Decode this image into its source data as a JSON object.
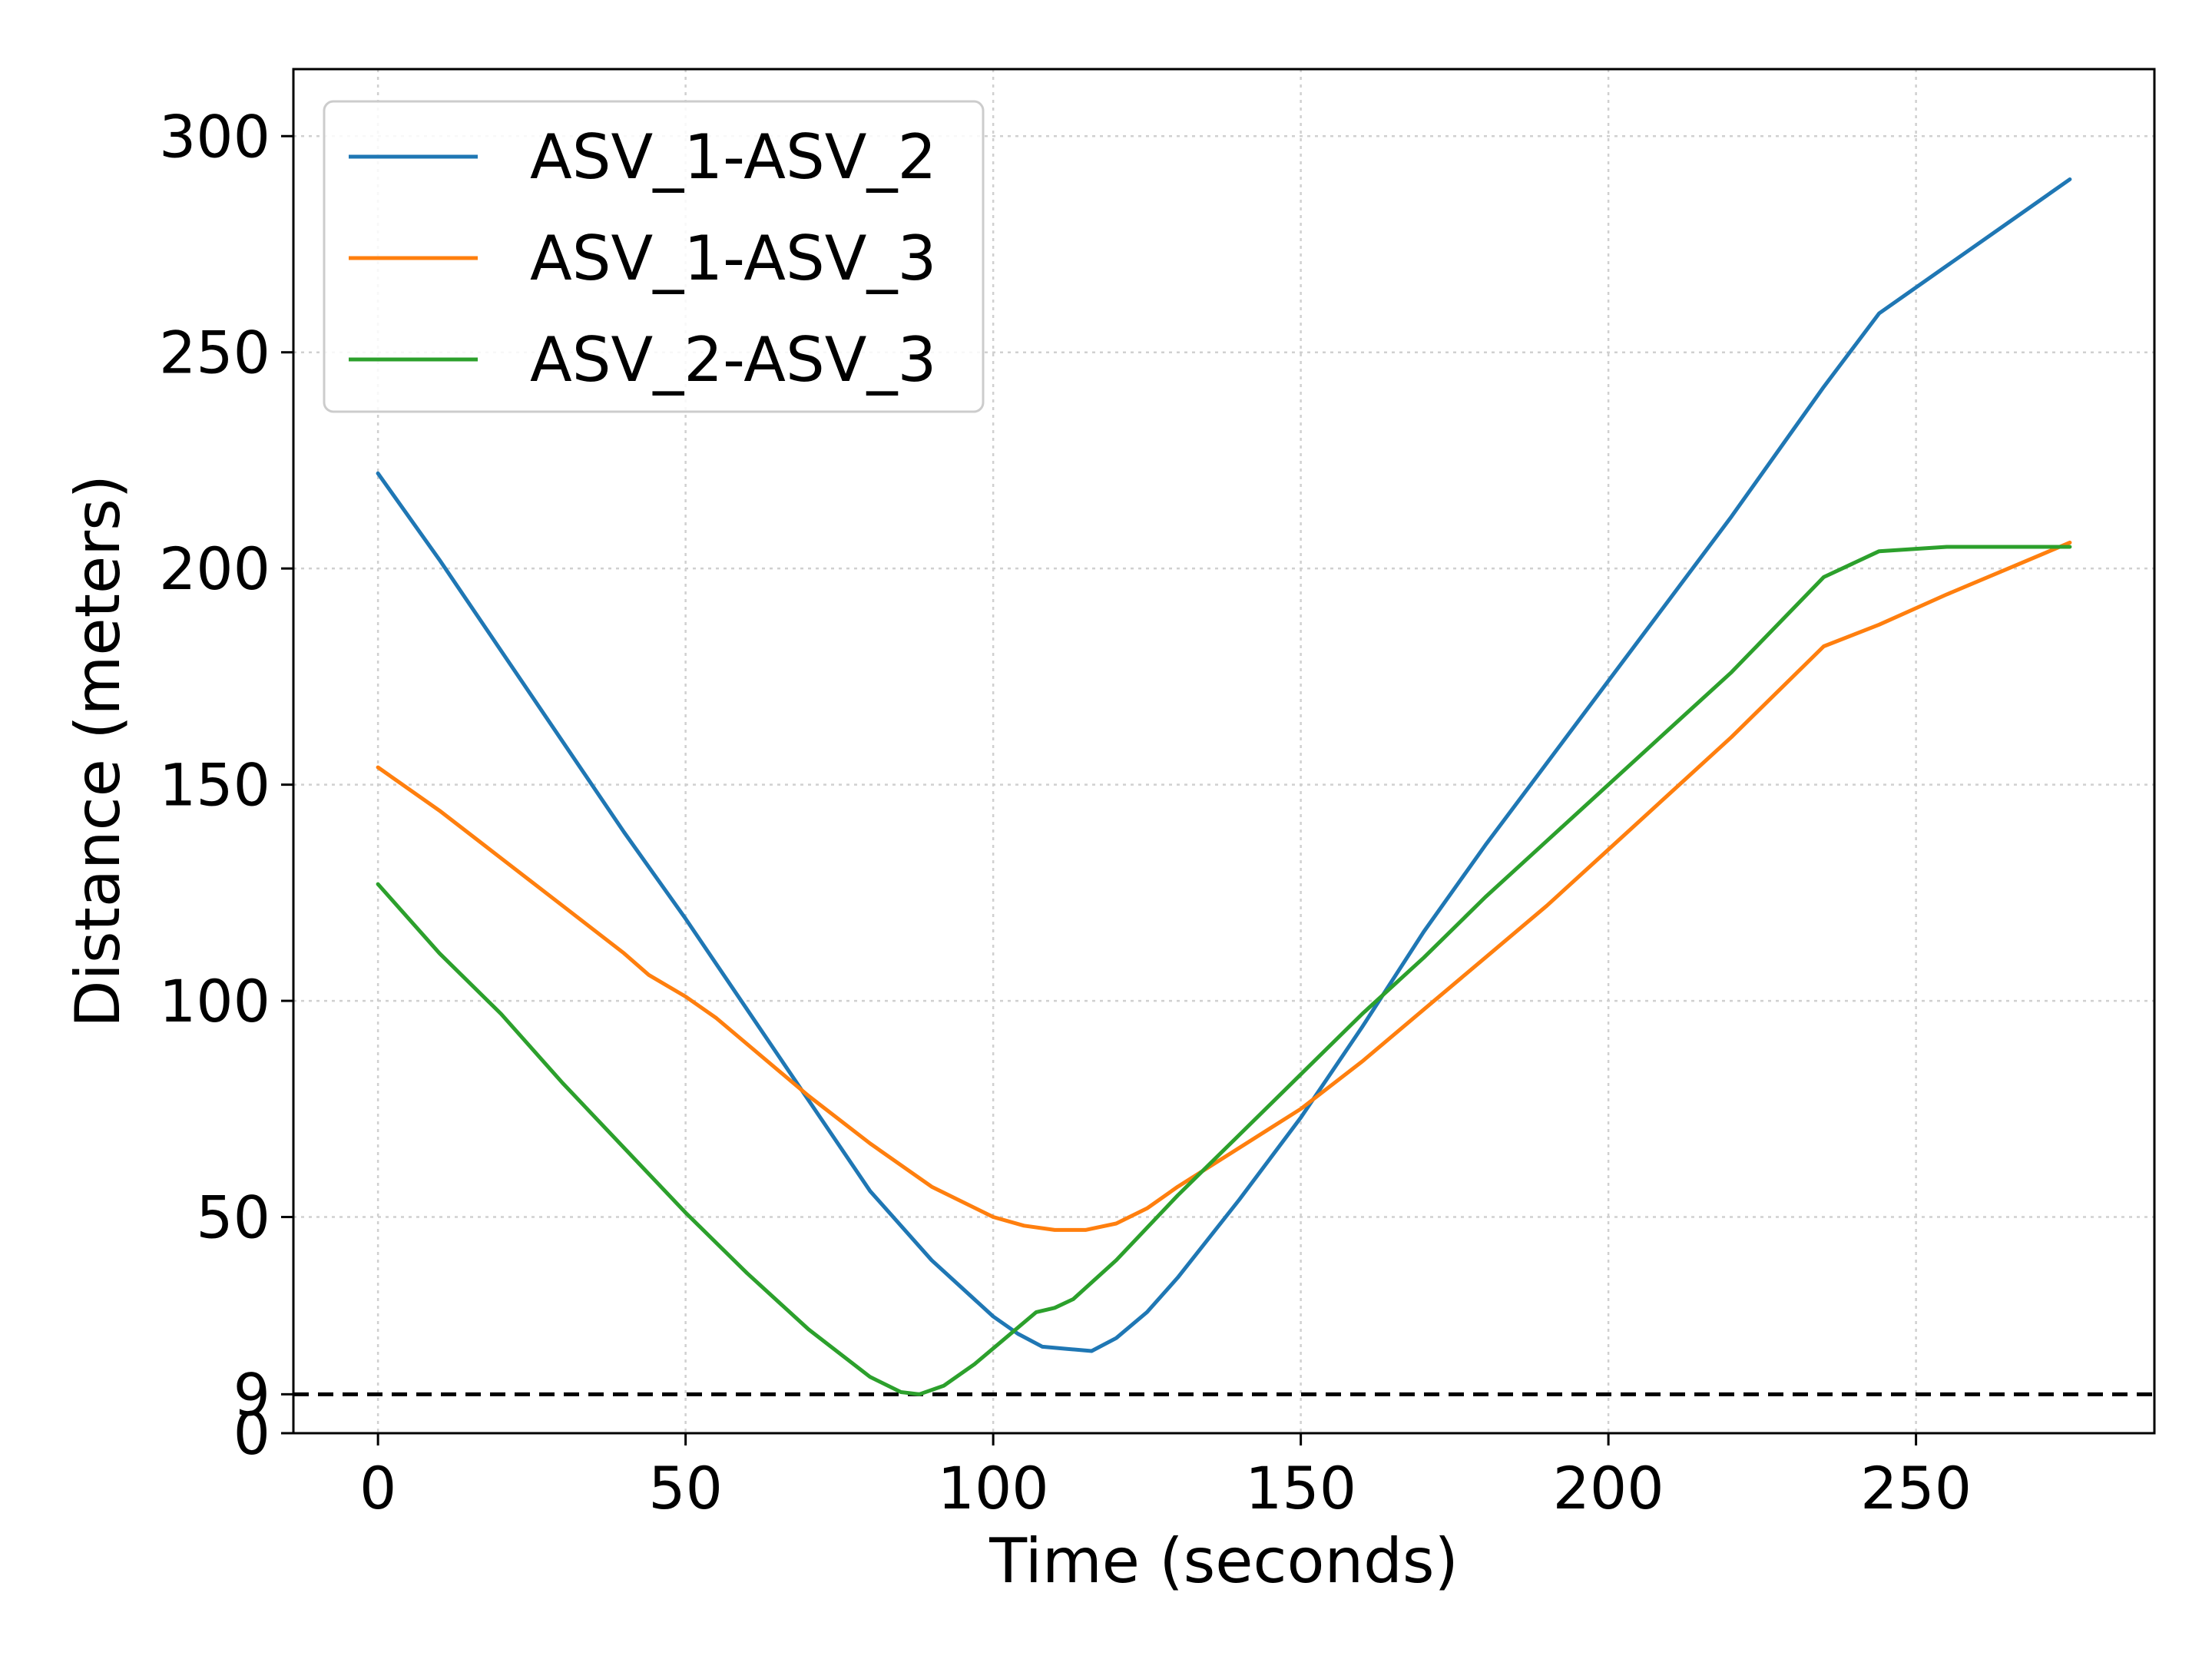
{
  "chart_data": {
    "type": "line",
    "xlabel": "Time (seconds)",
    "ylabel": "Distance (meters)",
    "xlim": [
      -13.75,
      288.75
    ],
    "ylim": [
      0,
      315.5
    ],
    "xticks": [
      0,
      50,
      100,
      150,
      200,
      250
    ],
    "yticks": [
      0,
      9,
      50,
      100,
      150,
      200,
      250,
      300
    ],
    "grid": true,
    "legend_position": "upper-left",
    "threshold": {
      "value": 9,
      "style": "dashed",
      "color": "#000000"
    },
    "series": [
      {
        "name": "ASV_1-ASV_2",
        "color": "#1f77b4",
        "x": [
          0,
          10,
          20,
          30,
          40,
          50,
          60,
          70,
          80,
          90,
          100,
          104,
          108,
          112,
          116,
          120,
          125,
          130,
          140,
          150,
          160,
          170,
          180,
          190,
          200,
          210,
          220,
          230,
          235,
          244,
          255,
          265,
          275
        ],
        "y": [
          222,
          202,
          181,
          160,
          139,
          119,
          98,
          77,
          56,
          40,
          27,
          23,
          20,
          19.5,
          19,
          22,
          28,
          36,
          54,
          73,
          94,
          116,
          136,
          155,
          174,
          193,
          212,
          232,
          242,
          259,
          270,
          280,
          290
        ]
      },
      {
        "name": "ASV_1-ASV_3",
        "color": "#ff7f0e",
        "x": [
          0,
          10,
          20,
          30,
          40,
          44,
          50,
          55,
          60,
          70,
          80,
          90,
          100,
          105,
          110,
          115,
          120,
          125,
          130,
          140,
          150,
          160,
          170,
          180,
          190,
          200,
          210,
          220,
          235,
          244,
          255,
          265,
          275
        ],
        "y": [
          154,
          144,
          133,
          122,
          111,
          106,
          101,
          96,
          90,
          78,
          67,
          57,
          50,
          48,
          47,
          47,
          48.5,
          52,
          57,
          66,
          75,
          86,
          98,
          110,
          122,
          135,
          148,
          161,
          182,
          187,
          194,
          200,
          206
        ]
      },
      {
        "name": "ASV_2-ASV_3",
        "color": "#2ca02c",
        "x": [
          0,
          10,
          20,
          30,
          40,
          50,
          60,
          70,
          80,
          85,
          88,
          92,
          97,
          102,
          107,
          110,
          113,
          120,
          130,
          140,
          150,
          160,
          170,
          180,
          190,
          200,
          210,
          220,
          235,
          244,
          255,
          265,
          275
        ],
        "y": [
          127,
          111,
          97,
          81,
          66,
          51,
          37,
          24,
          13,
          9.5,
          9,
          11,
          16,
          22,
          28,
          29,
          31,
          40,
          55,
          69,
          83,
          97,
          110,
          124,
          137,
          150,
          163,
          176,
          198,
          204,
          205,
          205,
          205
        ]
      }
    ]
  }
}
